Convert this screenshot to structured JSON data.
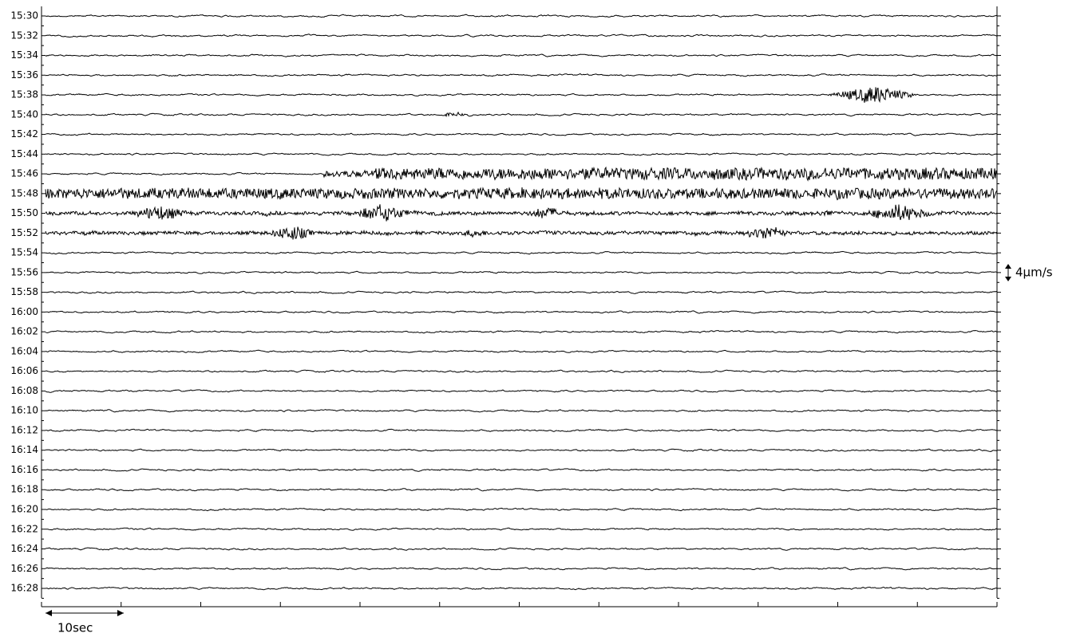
{
  "chart_data": {
    "type": "seismogram",
    "categories": [
      "15:30",
      "15:32",
      "15:34",
      "15:36",
      "15:38",
      "15:40",
      "15:42",
      "15:44",
      "15:46",
      "15:48",
      "15:50",
      "15:52",
      "15:54",
      "15:56",
      "15:58",
      "16:00",
      "16:02",
      "16:04",
      "16:06",
      "16:08",
      "16:10",
      "16:12",
      "16:14",
      "16:16",
      "16:18",
      "16:20",
      "16:22",
      "16:24",
      "16:26",
      "16:28"
    ],
    "amplitude_scale_label": "4μm/s",
    "time_scale_label": "10sec",
    "color": "#000000"
  }
}
